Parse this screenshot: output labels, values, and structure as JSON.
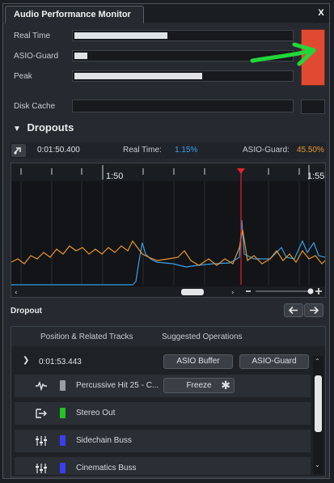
{
  "window": {
    "title": "Audio Performance Monitor",
    "close_label": "X"
  },
  "meters": {
    "real_time": {
      "label": "Real Time",
      "level": 0.43
    },
    "asio_guard": {
      "label": "ASIO-Guard",
      "level": 0.06
    },
    "peak": {
      "label": "Peak",
      "level": 0.59
    },
    "disk_cache": {
      "label": "Disk Cache",
      "level": 0
    }
  },
  "dropouts": {
    "heading": "Dropouts",
    "time": "0:01:50.400",
    "real_time_label": "Real Time:",
    "real_time_value": "1.15%",
    "asio_guard_label": "ASIO-Guard:",
    "asio_guard_value": "45.50%"
  },
  "timeline": {
    "markers": [
      "1:50",
      "1:55"
    ]
  },
  "dropout_list": {
    "heading": "Dropout",
    "col_position": "Position & Related Tracks",
    "col_ops": "Suggested Operations",
    "entry_time": "0:01:53.443",
    "op_asio_buffer": "ASIO Buffer",
    "op_asio_guard": "ASIO-Guard",
    "op_freeze": "Freeze",
    "tracks": [
      {
        "name": "Percussive Hit 25 - C...",
        "icon": "audio-wave-icon",
        "color": "#9a9ea3"
      },
      {
        "name": "Stereo Out",
        "icon": "output-icon",
        "color": "#22c322"
      },
      {
        "name": "Sidechain Buss",
        "icon": "mixer-icon",
        "color": "#3b3df0"
      },
      {
        "name": "Cinematics Buss",
        "icon": "mixer-icon",
        "color": "#3b3df0"
      }
    ]
  },
  "colors": {
    "overload": "#e04a33",
    "accent_blue": "#3aa0e6",
    "accent_orange": "#e8962e",
    "annotation_arrow": "#22d63a",
    "playhead": "#e0232b"
  }
}
